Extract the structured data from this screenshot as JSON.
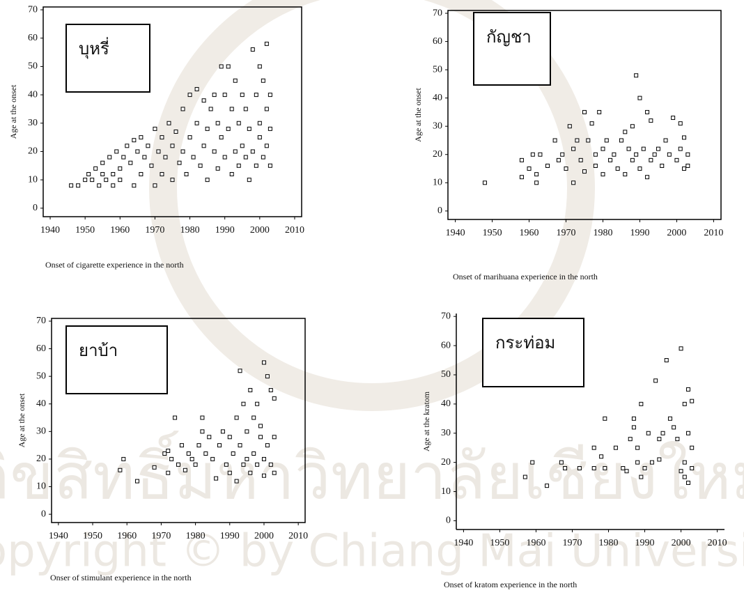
{
  "chart_data": [
    {
      "type": "scatter",
      "annotation": "บุหรี่",
      "ylabel": "Age at the onset",
      "xlabel": "Onset of cigarette experience in the north",
      "frame": "box",
      "color": "#000000",
      "xlim": [
        1938,
        2012
      ],
      "ylim": [
        -3,
        71
      ],
      "xticks": [
        1940,
        1950,
        1960,
        1970,
        1980,
        1990,
        2000,
        2010
      ],
      "yticks": [
        0,
        10,
        20,
        30,
        40,
        50,
        60,
        70
      ],
      "x": [
        1946,
        1948,
        1950,
        1951,
        1952,
        1953,
        1954,
        1955,
        1955,
        1956,
        1957,
        1958,
        1958,
        1959,
        1960,
        1960,
        1961,
        1962,
        1963,
        1964,
        1964,
        1965,
        1966,
        1966,
        1967,
        1968,
        1969,
        1970,
        1970,
        1971,
        1972,
        1972,
        1973,
        1974,
        1975,
        1975,
        1976,
        1977,
        1978,
        1978,
        1979,
        1980,
        1980,
        1981,
        1982,
        1982,
        1983,
        1984,
        1984,
        1985,
        1985,
        1986,
        1987,
        1987,
        1988,
        1988,
        1989,
        1989,
        1990,
        1990,
        1991,
        1991,
        1992,
        1992,
        1993,
        1993,
        1994,
        1994,
        1995,
        1995,
        1996,
        1996,
        1997,
        1997,
        1998,
        1998,
        1999,
        1999,
        2000,
        2000,
        2000,
        2001,
        2001,
        2002,
        2002,
        2002,
        2003,
        2003,
        2003
      ],
      "y": [
        8,
        8,
        10,
        12,
        10,
        14,
        8,
        12,
        16,
        10,
        18,
        12,
        8,
        20,
        14,
        10,
        18,
        22,
        16,
        8,
        24,
        20,
        12,
        25,
        18,
        22,
        15,
        8,
        28,
        20,
        12,
        25,
        18,
        30,
        22,
        10,
        27,
        16,
        35,
        20,
        12,
        40,
        25,
        18,
        42,
        30,
        15,
        38,
        22,
        28,
        10,
        35,
        20,
        40,
        30,
        14,
        25,
        50,
        18,
        40,
        50,
        28,
        12,
        35,
        20,
        45,
        30,
        15,
        40,
        22,
        18,
        35,
        10,
        28,
        56,
        20,
        40,
        15,
        50,
        25,
        30,
        45,
        18,
        58,
        22,
        35,
        15,
        40,
        28
      ]
    },
    {
      "type": "scatter",
      "annotation": "กัญชา",
      "ylabel": "Age at the onset",
      "xlabel": "Onset of marihuana experience in the north",
      "frame": "box",
      "color": "#000000",
      "xlim": [
        1938,
        2012
      ],
      "ylim": [
        -3,
        71
      ],
      "xticks": [
        1940,
        1950,
        1960,
        1970,
        1980,
        1990,
        2000,
        2010
      ],
      "yticks": [
        0,
        10,
        20,
        30,
        40,
        50,
        60,
        70
      ],
      "x": [
        1948,
        1958,
        1958,
        1960,
        1961,
        1962,
        1962,
        1963,
        1965,
        1967,
        1968,
        1969,
        1970,
        1971,
        1972,
        1972,
        1973,
        1974,
        1975,
        1975,
        1976,
        1977,
        1978,
        1978,
        1979,
        1980,
        1980,
        1981,
        1982,
        1983,
        1984,
        1985,
        1986,
        1986,
        1987,
        1988,
        1988,
        1989,
        1989,
        1990,
        1990,
        1991,
        1992,
        1992,
        1993,
        1993,
        1994,
        1995,
        1996,
        1997,
        1998,
        1999,
        2000,
        2001,
        2001,
        2002,
        2002,
        2003,
        2003
      ],
      "y": [
        10,
        12,
        18,
        15,
        20,
        10,
        13,
        20,
        16,
        25,
        18,
        20,
        15,
        30,
        22,
        10,
        25,
        18,
        35,
        14,
        25,
        31,
        20,
        16,
        35,
        22,
        13,
        25,
        18,
        20,
        15,
        25,
        28,
        13,
        22,
        18,
        30,
        48,
        20,
        40,
        15,
        22,
        35,
        12,
        32,
        18,
        20,
        22,
        16,
        25,
        20,
        33,
        18,
        31,
        22,
        26,
        15,
        20,
        16
      ]
    },
    {
      "type": "scatter",
      "annotation": "ยาบ้า",
      "ylabel": "Age at the onset",
      "xlabel": "Onser of stimulant experience in the north",
      "frame": "box",
      "color": "#000000",
      "xlim": [
        1938,
        2012
      ],
      "ylim": [
        -3,
        71
      ],
      "xticks": [
        1940,
        1950,
        1960,
        1970,
        1980,
        1990,
        2000,
        2010
      ],
      "yticks": [
        0,
        10,
        20,
        30,
        40,
        50,
        60,
        70
      ],
      "x": [
        1958,
        1959,
        1963,
        1968,
        1971,
        1972,
        1972,
        1973,
        1974,
        1975,
        1976,
        1977,
        1978,
        1979,
        1980,
        1981,
        1982,
        1982,
        1983,
        1984,
        1985,
        1986,
        1987,
        1988,
        1989,
        1990,
        1990,
        1991,
        1992,
        1992,
        1993,
        1993,
        1994,
        1994,
        1995,
        1995,
        1996,
        1996,
        1997,
        1997,
        1998,
        1998,
        1999,
        1999,
        2000,
        2000,
        2000,
        2001,
        2001,
        2002,
        2002,
        2003,
        2003,
        2003
      ],
      "y": [
        16,
        20,
        12,
        17,
        22,
        23,
        15,
        20,
        35,
        18,
        25,
        16,
        22,
        20,
        18,
        25,
        30,
        35,
        22,
        28,
        20,
        13,
        25,
        30,
        18,
        28,
        15,
        22,
        35,
        12,
        52,
        25,
        18,
        40,
        30,
        20,
        45,
        15,
        35,
        22,
        40,
        18,
        28,
        32,
        55,
        20,
        14,
        50,
        25,
        45,
        18,
        42,
        28,
        15
      ]
    },
    {
      "type": "scatter",
      "annotation": "กระท่อม",
      "ylabel": "Age at the kratom",
      "xlabel": "Onset of kratom experience in the north",
      "frame": "axes",
      "color": "#000000",
      "xlim": [
        1938,
        2012
      ],
      "ylim": [
        -3,
        71
      ],
      "xticks": [
        1940,
        1950,
        1960,
        1970,
        1980,
        1990,
        2000,
        2010
      ],
      "yticks": [
        0,
        10,
        20,
        30,
        40,
        50,
        60,
        70
      ],
      "x": [
        1957,
        1959,
        1963,
        1967,
        1968,
        1972,
        1976,
        1976,
        1978,
        1979,
        1979,
        1982,
        1984,
        1985,
        1986,
        1987,
        1987,
        1988,
        1988,
        1989,
        1989,
        1990,
        1991,
        1992,
        1993,
        1994,
        1994,
        1995,
        1996,
        1997,
        1998,
        1999,
        2000,
        2000,
        2001,
        2001,
        2001,
        2002,
        2002,
        2002,
        2003,
        2003,
        2003
      ],
      "y": [
        15,
        20,
        12,
        20,
        18,
        18,
        18,
        25,
        22,
        35,
        18,
        25,
        18,
        17,
        28,
        35,
        32,
        20,
        25,
        40,
        15,
        18,
        30,
        20,
        48,
        28,
        21,
        30,
        55,
        35,
        32,
        28,
        59,
        17,
        40,
        20,
        15,
        45,
        30,
        13,
        41,
        18,
        25
      ]
    }
  ],
  "watermark": {
    "thai": "ลิขสิทธิ์มหาวิทยาลัยเชียงใหม่",
    "english": "Copyright © by Chiang Mai University"
  }
}
